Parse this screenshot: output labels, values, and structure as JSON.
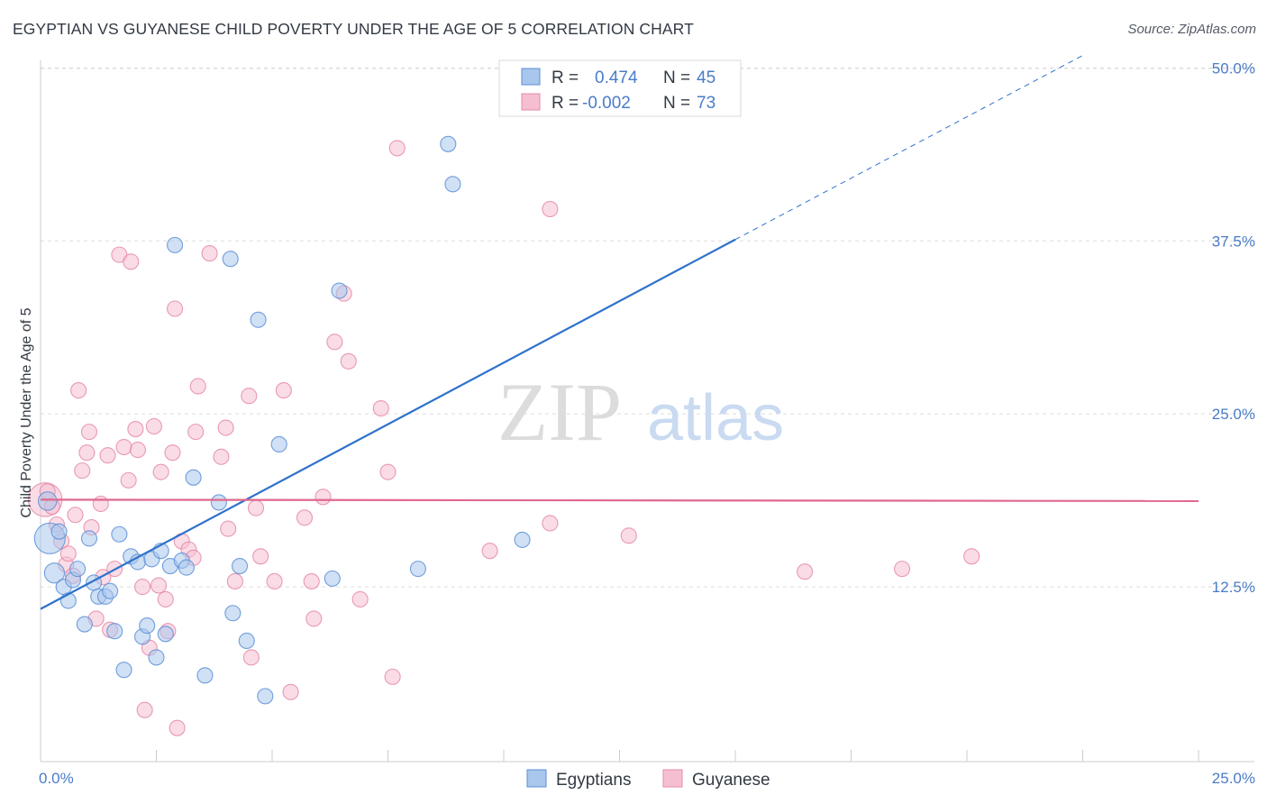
{
  "title": "EGYPTIAN VS GUYANESE CHILD POVERTY UNDER THE AGE OF 5 CORRELATION CHART",
  "source": "Source: ZipAtlas.com",
  "watermark": {
    "zip": "ZIP",
    "atlas": "atlas"
  },
  "colors": {
    "blue_fill": "#a9c6ec",
    "blue_stroke": "#5b8fd6",
    "blue_line": "#2e72cc",
    "pink_fill": "#f6bfd1",
    "pink_stroke": "#e58aa8",
    "pink_line": "#e0688e",
    "accent_text": "#4a7cc7",
    "grid": "#dcdcdc"
  },
  "legend": {
    "rows": [
      {
        "r_label": "R =",
        "r_value": "0.474",
        "n_label": "N =",
        "n_value": "45"
      },
      {
        "r_label": "R =",
        "r_value": "-0.002",
        "n_label": "N =",
        "n_value": "73"
      }
    ]
  },
  "chart_data": {
    "type": "scatter",
    "title": "EGYPTIAN VS GUYANESE CHILD POVERTY UNDER THE AGE OF 5 CORRELATION CHART",
    "xlabel": "",
    "ylabel": "Child Poverty Under the Age of 5",
    "xlim": [
      0,
      25
    ],
    "ylim": [
      0,
      51
    ],
    "x_tick_labels": [
      {
        "value": 0,
        "label": "0.0%"
      },
      {
        "value": 25,
        "label": "25.0%"
      }
    ],
    "y_tick_labels": [
      {
        "value": 12.5,
        "label": "12.5%"
      },
      {
        "value": 25,
        "label": "25.0%"
      },
      {
        "value": 37.5,
        "label": "37.5%"
      },
      {
        "value": 50,
        "label": "50.0%"
      }
    ],
    "grid": true,
    "legend_position": "top-center",
    "series": [
      {
        "name": "Egyptians",
        "color": "#a9c6ec",
        "trend": {
          "x0": 0,
          "y0": 10.9,
          "x1": 15,
          "y1": 37.6,
          "dashed_to_x": 22.5,
          "dashed_to_y": 50.9
        },
        "points": [
          [
            0.2,
            16.0,
            2
          ],
          [
            0.3,
            13.5,
            1.3
          ],
          [
            0.4,
            16.5,
            1
          ],
          [
            0.5,
            12.5,
            1
          ],
          [
            0.6,
            11.5,
            1
          ],
          [
            0.7,
            13.0,
            1
          ],
          [
            0.8,
            13.8,
            1
          ],
          [
            0.95,
            9.8,
            1
          ],
          [
            1.05,
            16.0,
            1
          ],
          [
            1.15,
            12.8,
            1
          ],
          [
            1.25,
            11.8,
            1
          ],
          [
            1.4,
            11.8,
            1
          ],
          [
            1.5,
            12.2,
            1
          ],
          [
            1.6,
            9.3,
            1
          ],
          [
            1.7,
            16.3,
            1
          ],
          [
            1.8,
            6.5,
            1
          ],
          [
            1.95,
            14.7,
            1
          ],
          [
            2.1,
            14.3,
            1
          ],
          [
            2.2,
            8.9,
            1
          ],
          [
            2.3,
            9.7,
            1
          ],
          [
            2.4,
            14.5,
            1
          ],
          [
            2.5,
            7.4,
            1
          ],
          [
            2.6,
            15.1,
            1
          ],
          [
            2.7,
            9.1,
            1
          ],
          [
            2.8,
            14.0,
            1
          ],
          [
            2.9,
            37.2,
            1
          ],
          [
            3.05,
            14.4,
            1
          ],
          [
            3.15,
            13.9,
            1
          ],
          [
            3.3,
            20.4,
            1
          ],
          [
            3.55,
            6.1,
            1
          ],
          [
            3.85,
            18.6,
            1
          ],
          [
            4.1,
            36.2,
            1
          ],
          [
            4.15,
            10.6,
            1
          ],
          [
            4.3,
            14.0,
            1
          ],
          [
            4.45,
            8.6,
            1
          ],
          [
            4.7,
            31.8,
            1
          ],
          [
            4.85,
            4.6,
            1
          ],
          [
            5.15,
            22.8,
            1
          ],
          [
            6.3,
            13.1,
            1
          ],
          [
            6.45,
            33.9,
            1
          ],
          [
            8.15,
            13.8,
            1
          ],
          [
            8.8,
            44.5,
            1
          ],
          [
            8.9,
            41.6,
            1
          ],
          [
            10.4,
            15.9,
            1
          ],
          [
            0.15,
            18.7,
            1.2
          ]
        ]
      },
      {
        "name": "Guyanese",
        "color": "#f6bfd1",
        "trend": {
          "x0": 0,
          "y0": 18.8,
          "x1": 25,
          "y1": 18.7
        },
        "points": [
          [
            0.1,
            18.8,
            2.2
          ],
          [
            0.25,
            18.3,
            1
          ],
          [
            0.35,
            17.0,
            1
          ],
          [
            0.45,
            15.8,
            1
          ],
          [
            0.55,
            14.1,
            1
          ],
          [
            0.6,
            14.9,
            1
          ],
          [
            0.7,
            13.3,
            1
          ],
          [
            0.75,
            17.7,
            1
          ],
          [
            0.82,
            26.7,
            1
          ],
          [
            0.9,
            20.9,
            1
          ],
          [
            1.0,
            22.2,
            1
          ],
          [
            1.05,
            23.7,
            1
          ],
          [
            1.1,
            16.8,
            1
          ],
          [
            1.2,
            10.2,
            1
          ],
          [
            1.3,
            18.5,
            1
          ],
          [
            1.35,
            13.2,
            1
          ],
          [
            1.45,
            22.0,
            1
          ],
          [
            1.5,
            9.4,
            1
          ],
          [
            1.6,
            13.8,
            1
          ],
          [
            1.7,
            36.5,
            1
          ],
          [
            1.8,
            22.6,
            1
          ],
          [
            1.9,
            20.2,
            1
          ],
          [
            1.95,
            36.0,
            1
          ],
          [
            2.05,
            23.9,
            1
          ],
          [
            2.1,
            22.4,
            1
          ],
          [
            2.2,
            12.5,
            1
          ],
          [
            2.25,
            3.6,
            1
          ],
          [
            2.35,
            8.1,
            1
          ],
          [
            2.45,
            24.1,
            1
          ],
          [
            2.55,
            12.6,
            1
          ],
          [
            2.6,
            20.8,
            1
          ],
          [
            2.7,
            11.6,
            1
          ],
          [
            2.75,
            9.3,
            1
          ],
          [
            2.85,
            22.2,
            1
          ],
          [
            2.9,
            32.6,
            1
          ],
          [
            2.95,
            2.3,
            1
          ],
          [
            3.05,
            15.8,
            1
          ],
          [
            3.2,
            15.2,
            1
          ],
          [
            3.3,
            14.6,
            1
          ],
          [
            3.35,
            23.7,
            1
          ],
          [
            3.4,
            27.0,
            1
          ],
          [
            3.65,
            36.6,
            1
          ],
          [
            3.9,
            21.9,
            1
          ],
          [
            4.0,
            24.0,
            1
          ],
          [
            4.05,
            16.7,
            1
          ],
          [
            4.2,
            12.9,
            1
          ],
          [
            4.5,
            26.3,
            1
          ],
          [
            4.55,
            7.4,
            1
          ],
          [
            4.65,
            18.2,
            1
          ],
          [
            4.75,
            14.7,
            1
          ],
          [
            5.05,
            12.9,
            1
          ],
          [
            5.25,
            26.7,
            1
          ],
          [
            5.4,
            4.9,
            1
          ],
          [
            5.7,
            17.5,
            1
          ],
          [
            5.85,
            12.9,
            1
          ],
          [
            5.9,
            10.2,
            1
          ],
          [
            6.1,
            19.0,
            1
          ],
          [
            6.35,
            30.2,
            1
          ],
          [
            6.55,
            33.7,
            1
          ],
          [
            6.65,
            28.8,
            1
          ],
          [
            6.9,
            11.6,
            1
          ],
          [
            7.35,
            25.4,
            1
          ],
          [
            7.5,
            20.8,
            1
          ],
          [
            7.6,
            6.0,
            1
          ],
          [
            7.7,
            44.2,
            1
          ],
          [
            9.7,
            15.1,
            1
          ],
          [
            11.0,
            39.8,
            1
          ],
          [
            11.0,
            17.1,
            1
          ],
          [
            12.7,
            16.2,
            1
          ],
          [
            16.5,
            13.6,
            1
          ],
          [
            18.6,
            13.8,
            1
          ],
          [
            20.1,
            14.7,
            1
          ],
          [
            0.15,
            19.4,
            1
          ]
        ]
      }
    ]
  }
}
